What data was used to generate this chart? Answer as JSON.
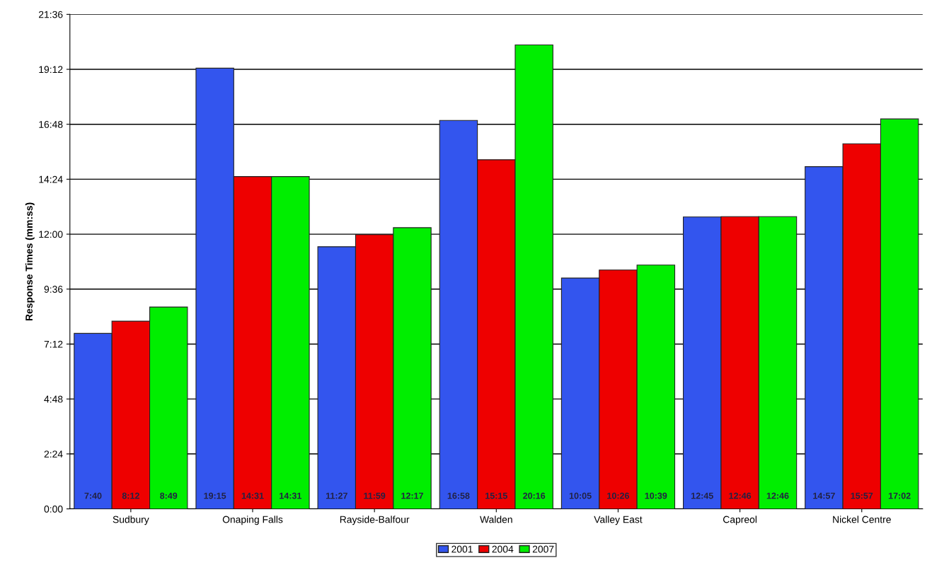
{
  "chart_data": {
    "type": "bar",
    "ylabel": "Response Times (mm:ss)",
    "categories": [
      "Sudbury",
      "Onaping Falls",
      "Rayside-Balfour",
      "Walden",
      "Valley East",
      "Capreol",
      "Nickel Centre"
    ],
    "series": [
      {
        "name": "2001",
        "color": "#3355ee",
        "values": [
          7.667,
          19.25,
          11.45,
          16.967,
          10.083,
          12.75,
          14.95
        ],
        "value_labels": [
          "7:40",
          "19:15",
          "11:27",
          "16:58",
          "10:05",
          "12:45",
          "14:57"
        ]
      },
      {
        "name": "2004",
        "color": "#ee0000",
        "values": [
          8.2,
          14.517,
          11.983,
          15.25,
          10.433,
          12.767,
          15.95
        ],
        "value_labels": [
          "8:12",
          "14:31",
          "11:59",
          "15:15",
          "10:26",
          "12:46",
          "15:57"
        ]
      },
      {
        "name": "2007",
        "color": "#00ee00",
        "values": [
          8.817,
          14.517,
          12.283,
          20.267,
          10.65,
          12.767,
          17.033
        ],
        "value_labels": [
          "8:49",
          "14:31",
          "12:17",
          "20:16",
          "10:39",
          "12:46",
          "17:02"
        ]
      }
    ],
    "ylim": [
      0,
      21.6
    ],
    "yticks": [
      {
        "value": 0,
        "label": "0:00"
      },
      {
        "value": 2.4,
        "label": "2:24"
      },
      {
        "value": 4.8,
        "label": "4:48"
      },
      {
        "value": 7.2,
        "label": "7:12"
      },
      {
        "value": 9.6,
        "label": "9:36"
      },
      {
        "value": 12,
        "label": "12:00"
      },
      {
        "value": 14.4,
        "label": "14:24"
      },
      {
        "value": 16.8,
        "label": "16:48"
      },
      {
        "value": 19.2,
        "label": "19:12"
      },
      {
        "value": 21.6,
        "label": "21:36"
      }
    ],
    "grid": "y",
    "legend": "bottom"
  }
}
